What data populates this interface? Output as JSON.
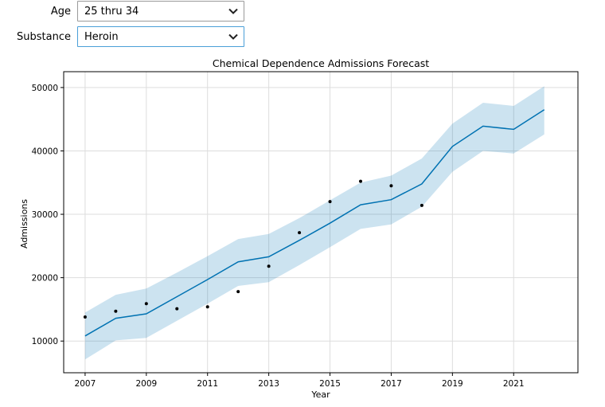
{
  "controls": {
    "age": {
      "label": "Age",
      "value": "25 thru 34"
    },
    "substance": {
      "label": "Substance",
      "value": "Heroin"
    }
  },
  "chart_data": {
    "type": "line",
    "title": "Chemical Dependence Admissions Forecast",
    "xlabel": "Year",
    "ylabel": "Admissions",
    "xlim": [
      2006.3,
      2023.1
    ],
    "ylim": [
      5000,
      52500
    ],
    "xticks": [
      2007,
      2009,
      2011,
      2013,
      2015,
      2017,
      2019,
      2021
    ],
    "yticks": [
      10000,
      20000,
      30000,
      40000,
      50000
    ],
    "grid": true,
    "colors": {
      "forecast": "#0072b2",
      "interval": "#0072b2",
      "observed": "#000000"
    },
    "observed": {
      "x": [
        2007,
        2008,
        2009,
        2010,
        2011,
        2012,
        2013,
        2014,
        2015,
        2016,
        2017,
        2018
      ],
      "y": [
        13800,
        14700,
        15900,
        15100,
        15400,
        17800,
        21800,
        27100,
        32000,
        35200,
        34500,
        31400
      ]
    },
    "forecast": {
      "x": [
        2007,
        2008,
        2009,
        2010,
        2011,
        2012,
        2013,
        2014,
        2015,
        2016,
        2017,
        2018,
        2019,
        2020,
        2021,
        2022
      ],
      "y": [
        10800,
        13600,
        14300,
        17000,
        19700,
        22500,
        23300,
        25900,
        28600,
        31500,
        32300,
        34800,
        40700,
        43900,
        43400,
        46500
      ],
      "lower": [
        7100,
        10100,
        10500,
        13200,
        15900,
        18700,
        19300,
        22000,
        24800,
        27700,
        28400,
        31200,
        36700,
        40000,
        39600,
        42600
      ],
      "upper": [
        14500,
        17300,
        18300,
        20800,
        23400,
        26100,
        26900,
        29400,
        32200,
        35000,
        36100,
        38800,
        44300,
        47600,
        47100,
        50200
      ]
    }
  }
}
